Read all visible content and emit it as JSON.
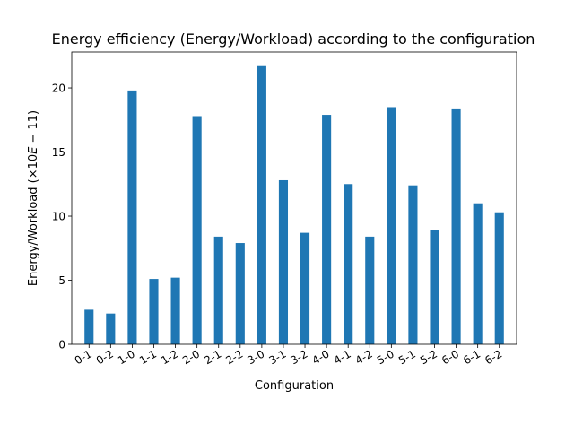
{
  "chart_data": {
    "type": "bar",
    "title": "Energy efficiency (Energy/Workload) according to the configuration",
    "xlabel": "Configuration",
    "ylabel_text": "Energy/Workload (×10",
    "ylabel_math": "E",
    "ylabel_tail": " − 11)",
    "categories": [
      "0-1",
      "0-2",
      "1-0",
      "1-1",
      "1-2",
      "2-0",
      "2-1",
      "2-2",
      "3-0",
      "3-1",
      "3-2",
      "4-0",
      "4-1",
      "4-2",
      "5-0",
      "5-1",
      "5-2",
      "6-0",
      "6-1",
      "6-2"
    ],
    "values": [
      2.7,
      2.4,
      19.8,
      5.1,
      5.2,
      17.8,
      8.4,
      7.9,
      21.7,
      12.8,
      8.7,
      17.9,
      12.5,
      8.4,
      18.5,
      12.4,
      8.9,
      18.4,
      11.0,
      10.3
    ],
    "ylim": [
      0,
      22.8
    ],
    "yticks": [
      0,
      5,
      10,
      15,
      20
    ],
    "bar_color": "#1f77b4",
    "grid": false,
    "legend": "none"
  }
}
